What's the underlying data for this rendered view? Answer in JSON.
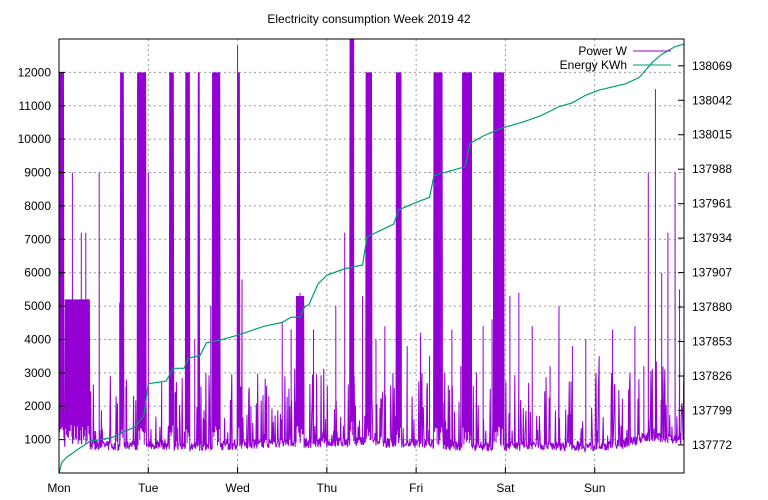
{
  "chart_data": {
    "type": "line",
    "title": "Electricity consumption Week 2019 42",
    "x_categories": [
      "Mon",
      "Tue",
      "Wed",
      "Thu",
      "Fri",
      "Sat",
      "Sun"
    ],
    "y_left_ticks": [
      1000,
      2000,
      3000,
      4000,
      5000,
      6000,
      7000,
      8000,
      9000,
      10000,
      11000,
      12000
    ],
    "y_right_ticks": [
      137772,
      137799,
      137826,
      137853,
      137880,
      137907,
      137934,
      137961,
      137988,
      138015,
      138042,
      138069
    ],
    "y_left_range": [
      0,
      13000
    ],
    "y_right_range": [
      137750,
      138090
    ],
    "x_range_days": [
      0,
      7
    ],
    "grid": true,
    "legend_position": "top-right",
    "series": [
      {
        "name": "Power W",
        "axis": "left",
        "color": "#9400d3",
        "base_by_day": [
          [
            0,
            900
          ],
          [
            0.3,
            850
          ],
          [
            0.6,
            800
          ],
          [
            0.9,
            820
          ],
          [
            1.2,
            850
          ],
          [
            1.5,
            800
          ],
          [
            1.8,
            820
          ],
          [
            2.1,
            850
          ],
          [
            2.4,
            900
          ],
          [
            2.7,
            900
          ],
          [
            3.0,
            900
          ],
          [
            3.3,
            950
          ],
          [
            3.6,
            900
          ],
          [
            3.9,
            900
          ],
          [
            4.2,
            850
          ],
          [
            4.5,
            800
          ],
          [
            4.8,
            800
          ],
          [
            5.1,
            800
          ],
          [
            5.4,
            850
          ],
          [
            5.7,
            800
          ],
          [
            6.0,
            800
          ],
          [
            6.3,
            850
          ],
          [
            6.6,
            1100
          ],
          [
            7.0,
            1000
          ]
        ],
        "peak_bands": [
          [
            0.0,
            0.06,
            12000
          ],
          [
            0.07,
            0.35,
            5200
          ],
          [
            0.68,
            0.72,
            12000
          ],
          [
            0.88,
            0.97,
            12000
          ],
          [
            1.24,
            1.28,
            12000
          ],
          [
            1.42,
            1.46,
            12000
          ],
          [
            1.55,
            1.57,
            12000
          ],
          [
            1.72,
            1.8,
            12000
          ],
          [
            2.0,
            2.02,
            12000
          ],
          [
            2.66,
            2.74,
            5300
          ],
          [
            3.26,
            3.3,
            13000
          ],
          [
            3.43,
            3.5,
            12000
          ],
          [
            3.78,
            3.84,
            12000
          ],
          [
            4.2,
            4.3,
            12000
          ],
          [
            4.52,
            4.62,
            12000
          ],
          [
            4.87,
            4.98,
            12000
          ]
        ],
        "spike_values": [
          [
            0.15,
            9000
          ],
          [
            0.25,
            7200
          ],
          [
            0.3,
            7200
          ],
          [
            0.45,
            9000
          ],
          [
            0.68,
            5100
          ],
          [
            0.75,
            2600
          ],
          [
            1.0,
            9000
          ],
          [
            1.15,
            2600
          ],
          [
            1.3,
            2400
          ],
          [
            1.52,
            4000
          ],
          [
            1.7,
            5000
          ],
          [
            2.0,
            12800
          ],
          [
            2.05,
            5800
          ],
          [
            2.15,
            2000
          ],
          [
            2.35,
            2300
          ],
          [
            2.5,
            4500
          ],
          [
            2.6,
            4300
          ],
          [
            2.7,
            5400
          ],
          [
            2.85,
            4300
          ],
          [
            3.1,
            5000
          ],
          [
            3.2,
            7200
          ],
          [
            3.3,
            12000
          ],
          [
            3.4,
            5300
          ],
          [
            3.55,
            4000
          ],
          [
            3.65,
            4400
          ],
          [
            3.8,
            12000
          ],
          [
            3.9,
            3800
          ],
          [
            4.05,
            4200
          ],
          [
            4.15,
            3500
          ],
          [
            4.25,
            12000
          ],
          [
            4.4,
            4300
          ],
          [
            4.5,
            3200
          ],
          [
            4.62,
            3800
          ],
          [
            4.75,
            4400
          ],
          [
            4.85,
            4600
          ],
          [
            4.95,
            4100
          ],
          [
            5.05,
            5300
          ],
          [
            5.15,
            5400
          ],
          [
            5.3,
            4400
          ],
          [
            5.5,
            3200
          ],
          [
            5.6,
            5000
          ],
          [
            5.75,
            3800
          ],
          [
            5.9,
            4000
          ],
          [
            6.05,
            3500
          ],
          [
            6.2,
            4300
          ],
          [
            6.45,
            4400
          ],
          [
            6.55,
            3200
          ],
          [
            6.6,
            9000
          ],
          [
            6.68,
            11500
          ],
          [
            6.75,
            6000
          ],
          [
            6.82,
            7200
          ],
          [
            6.9,
            9000
          ],
          [
            6.95,
            5500
          ]
        ]
      },
      {
        "name": "Energy KWh",
        "axis": "right",
        "color": "#009e73",
        "points": [
          [
            0.0,
            137750
          ],
          [
            0.03,
            137758
          ],
          [
            0.08,
            137762
          ],
          [
            0.2,
            137768
          ],
          [
            0.35,
            137775
          ],
          [
            0.45,
            137776
          ],
          [
            0.6,
            137778
          ],
          [
            0.75,
            137783
          ],
          [
            0.85,
            137786
          ],
          [
            0.95,
            137795
          ],
          [
            1.0,
            137820
          ],
          [
            1.2,
            137822
          ],
          [
            1.28,
            137832
          ],
          [
            1.4,
            137832
          ],
          [
            1.45,
            137840
          ],
          [
            1.58,
            137842
          ],
          [
            1.65,
            137852
          ],
          [
            1.8,
            137854
          ],
          [
            2.0,
            137858
          ],
          [
            2.3,
            137865
          ],
          [
            2.5,
            137868
          ],
          [
            2.6,
            137872
          ],
          [
            2.7,
            137872
          ],
          [
            2.75,
            137880
          ],
          [
            2.8,
            137882
          ],
          [
            2.9,
            137898
          ],
          [
            3.0,
            137905
          ],
          [
            3.2,
            137910
          ],
          [
            3.4,
            137913
          ],
          [
            3.45,
            137935
          ],
          [
            3.6,
            137940
          ],
          [
            3.75,
            137945
          ],
          [
            3.8,
            137956
          ],
          [
            4.0,
            137962
          ],
          [
            4.15,
            137966
          ],
          [
            4.2,
            137983
          ],
          [
            4.35,
            137986
          ],
          [
            4.55,
            137990
          ],
          [
            4.6,
            138008
          ],
          [
            4.75,
            138014
          ],
          [
            4.95,
            138020
          ],
          [
            5.2,
            138025
          ],
          [
            5.4,
            138030
          ],
          [
            5.6,
            138037
          ],
          [
            5.75,
            138040
          ],
          [
            5.9,
            138046
          ],
          [
            6.05,
            138050
          ],
          [
            6.35,
            138055
          ],
          [
            6.5,
            138060
          ],
          [
            6.65,
            138072
          ],
          [
            6.75,
            138078
          ],
          [
            6.9,
            138084
          ],
          [
            7.0,
            138086
          ]
        ]
      }
    ]
  }
}
